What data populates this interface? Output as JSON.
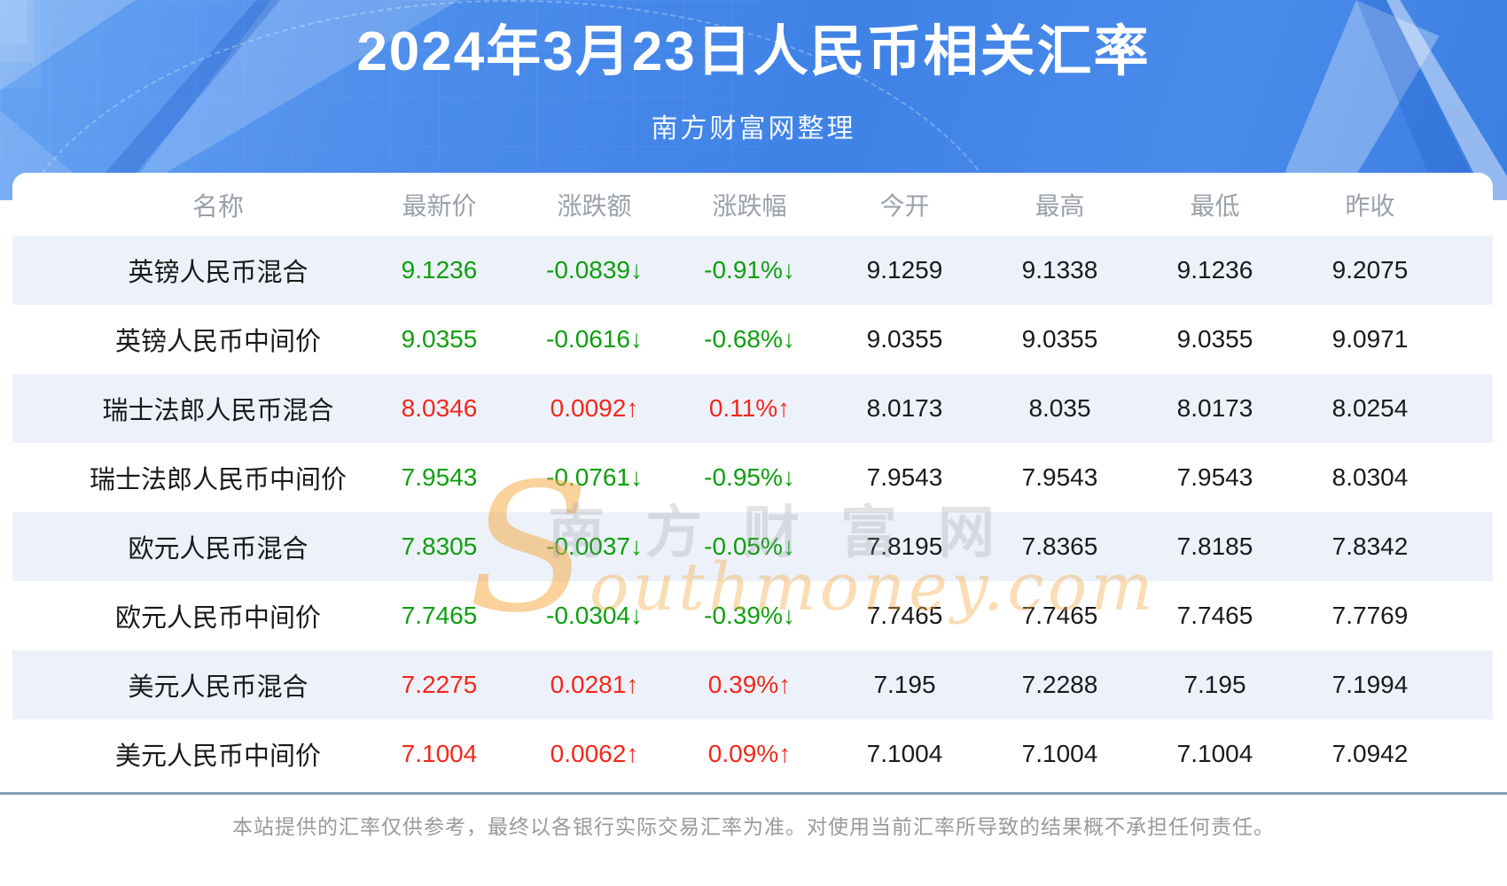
{
  "header": {
    "title": "2024年3月23日人民币相关汇率",
    "subtitle": "南方财富网整理"
  },
  "watermark": {
    "cn_text": "南方财富网",
    "initial": "S",
    "script_text": "outhmoney.com"
  },
  "table": {
    "columns": [
      "名称",
      "最新价",
      "涨跌额",
      "涨跌幅",
      "今开",
      "最高",
      "最低",
      "昨收"
    ],
    "rows": [
      {
        "name": "英镑人民币混合",
        "latest": "9.1236",
        "change": "-0.0839↓",
        "pct": "-0.91%↓",
        "open": "9.1259",
        "high": "9.1338",
        "low": "9.1236",
        "prev": "9.2075",
        "trend": "down"
      },
      {
        "name": "英镑人民币中间价",
        "latest": "9.0355",
        "change": "-0.0616↓",
        "pct": "-0.68%↓",
        "open": "9.0355",
        "high": "9.0355",
        "low": "9.0355",
        "prev": "9.0971",
        "trend": "down"
      },
      {
        "name": "瑞士法郎人民币混合",
        "latest": "8.0346",
        "change": "0.0092↑",
        "pct": "0.11%↑",
        "open": "8.0173",
        "high": "8.035",
        "low": "8.0173",
        "prev": "8.0254",
        "trend": "up"
      },
      {
        "name": "瑞士法郎人民币中间价",
        "latest": "7.9543",
        "change": "-0.0761↓",
        "pct": "-0.95%↓",
        "open": "7.9543",
        "high": "7.9543",
        "low": "7.9543",
        "prev": "8.0304",
        "trend": "down"
      },
      {
        "name": "欧元人民币混合",
        "latest": "7.8305",
        "change": "-0.0037↓",
        "pct": "-0.05%↓",
        "open": "7.8195",
        "high": "7.8365",
        "low": "7.8185",
        "prev": "7.8342",
        "trend": "down"
      },
      {
        "name": "欧元人民币中间价",
        "latest": "7.7465",
        "change": "-0.0304↓",
        "pct": "-0.39%↓",
        "open": "7.7465",
        "high": "7.7465",
        "low": "7.7465",
        "prev": "7.7769",
        "trend": "down"
      },
      {
        "name": "美元人民币混合",
        "latest": "7.2275",
        "change": "0.0281↑",
        "pct": "0.39%↑",
        "open": "7.195",
        "high": "7.2288",
        "low": "7.195",
        "prev": "7.1994",
        "trend": "up"
      },
      {
        "name": "美元人民币中间价",
        "latest": "7.1004",
        "change": "0.0062↑",
        "pct": "0.09%↑",
        "open": "7.1004",
        "high": "7.1004",
        "low": "7.1004",
        "prev": "7.0942",
        "trend": "up"
      }
    ]
  },
  "footer": {
    "disclaimer": "本站提供的汇率仅供参考，最终以各银行实际交易汇率为准。对使用当前汇率所导致的结果概不承担任何责任。"
  },
  "colors": {
    "up_red": "#f3271c",
    "down_green": "#0d9f0d",
    "stripe_blue": "#edf2fa",
    "header_text_gray": "#9ba1a9",
    "footer_text_gray": "#9a9a9a",
    "divider_gray_blue": "#879db1",
    "hero_blue": "#4385e8"
  }
}
